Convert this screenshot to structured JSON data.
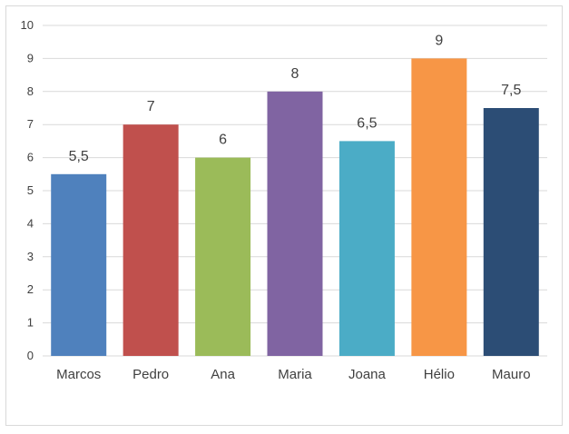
{
  "chart_data": {
    "type": "bar",
    "categories": [
      "Marcos",
      "Pedro",
      "Ana",
      "Maria",
      "Joana",
      "Hélio",
      "Mauro"
    ],
    "values": [
      5.5,
      7,
      6,
      8,
      6.5,
      9,
      7.5
    ],
    "value_labels": [
      "5,5",
      "7",
      "6",
      "8",
      "6,5",
      "9",
      "7,5"
    ],
    "colors": [
      "#4f81bd",
      "#c0504d",
      "#9bbb59",
      "#8064a2",
      "#4bacc6",
      "#f79646",
      "#2c4d75"
    ],
    "y_ticks": [
      "0",
      "1",
      "2",
      "3",
      "4",
      "5",
      "6",
      "7",
      "8",
      "9",
      "10"
    ],
    "ylim": [
      0,
      10
    ],
    "grid": true,
    "legend": "none",
    "title": "",
    "xlabel": "",
    "ylabel": ""
  }
}
